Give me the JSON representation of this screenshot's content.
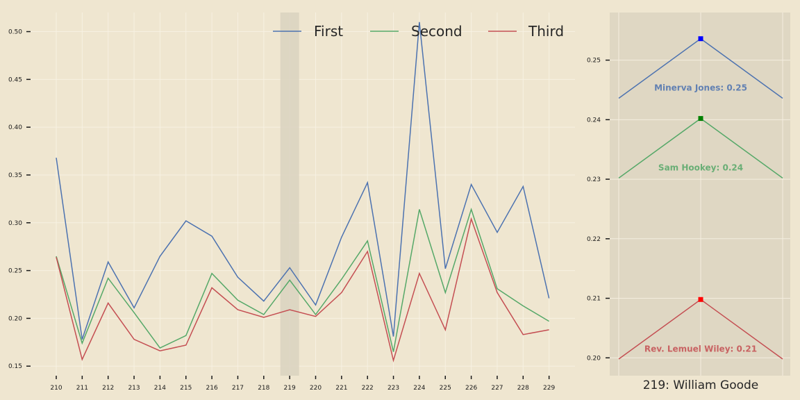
{
  "chart_data": [
    {
      "type": "line",
      "categories": [
        "210",
        "211",
        "212",
        "213",
        "214",
        "215",
        "216",
        "217",
        "218",
        "219",
        "220",
        "221",
        "222",
        "223",
        "224",
        "225",
        "226",
        "227",
        "228",
        "229"
      ],
      "series": [
        {
          "name": "First",
          "color": "#4c72b0",
          "values": [
            0.368,
            0.178,
            0.259,
            0.211,
            0.265,
            0.302,
            0.286,
            0.243,
            0.218,
            0.253,
            0.214,
            0.285,
            0.342,
            0.181,
            0.51,
            0.252,
            0.34,
            0.29,
            0.338,
            0.221
          ]
        },
        {
          "name": "Second",
          "color": "#55a868",
          "values": [
            0.265,
            0.174,
            0.242,
            0.206,
            0.169,
            0.182,
            0.247,
            0.219,
            0.204,
            0.24,
            0.204,
            0.241,
            0.281,
            0.165,
            0.314,
            0.227,
            0.314,
            0.231,
            0.213,
            0.197
          ]
        },
        {
          "name": "Third",
          "color": "#c44e52",
          "values": [
            0.264,
            0.157,
            0.216,
            0.178,
            0.166,
            0.172,
            0.232,
            0.209,
            0.201,
            0.209,
            0.202,
            0.227,
            0.27,
            0.156,
            0.247,
            0.188,
            0.304,
            0.227,
            0.183,
            0.188
          ]
        }
      ],
      "ylim": [
        0.14,
        0.52
      ],
      "yticks": [
        "0.15",
        "0.20",
        "0.25",
        "0.30",
        "0.35",
        "0.40",
        "0.45",
        "0.50"
      ],
      "highlight_category": "219",
      "grid": true,
      "legend": "top-right"
    },
    {
      "type": "line",
      "title": "219: William Goode",
      "ylim": [
        0.197,
        0.258
      ],
      "yticks": [
        "0.20",
        "0.21",
        "0.22",
        "0.23",
        "0.24",
        "0.25"
      ],
      "series": [
        {
          "label": "Minerva Jones: 0.25",
          "color": "#4c72b0",
          "marker_color": "#0000ff",
          "values": [
            0.2436,
            0.2536,
            0.2436
          ]
        },
        {
          "label": "Sam Hookey: 0.24",
          "color": "#55a868",
          "marker_color": "#008000",
          "values": [
            0.2302,
            0.2402,
            0.2302
          ]
        },
        {
          "label": "Rev. Lemuel Wiley: 0.21",
          "color": "#c44e52",
          "marker_color": "#ff0000",
          "values": [
            0.1998,
            0.2098,
            0.1998
          ]
        }
      ],
      "grid": true
    }
  ]
}
